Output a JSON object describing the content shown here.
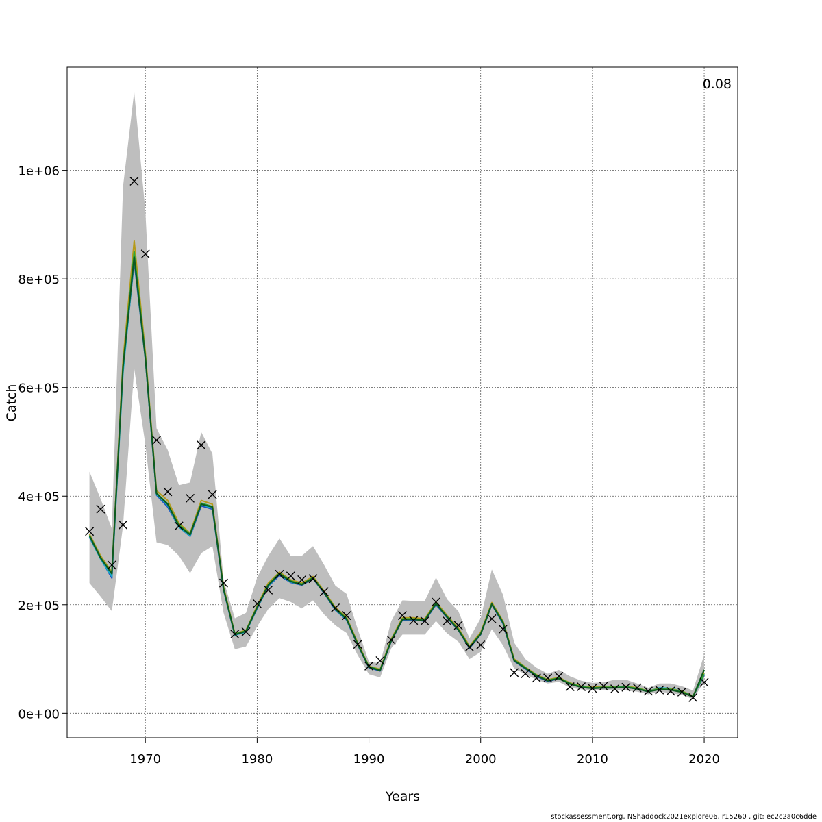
{
  "chart_data": {
    "type": "line",
    "title": "",
    "xlabel": "Years",
    "ylabel": "Catch",
    "corner_label": "0.08",
    "xlim": [
      1963,
      2023
    ],
    "ylim": [
      -45000,
      1190000
    ],
    "x_ticks": [
      1970,
      1980,
      1990,
      2000,
      2010,
      2020
    ],
    "x_tick_labels": [
      "1970",
      "1980",
      "1990",
      "2000",
      "2010",
      "2020"
    ],
    "y_ticks": [
      0,
      200000,
      400000,
      600000,
      800000,
      1000000
    ],
    "y_tick_labels": [
      "0e+00",
      "2e+05",
      "4e+05",
      "6e+05",
      "8e+05",
      "1e+06"
    ],
    "grid": true,
    "x": [
      1965,
      1966,
      1967,
      1968,
      1969,
      1970,
      1971,
      1972,
      1973,
      1974,
      1975,
      1976,
      1977,
      1978,
      1979,
      1980,
      1981,
      1982,
      1983,
      1984,
      1985,
      1986,
      1987,
      1988,
      1989,
      1990,
      1991,
      1992,
      1993,
      1994,
      1995,
      1996,
      1997,
      1998,
      1999,
      2000,
      2001,
      2002,
      2003,
      2004,
      2005,
      2006,
      2007,
      2008,
      2009,
      2010,
      2011,
      2012,
      2013,
      2014,
      2015,
      2016,
      2017,
      2018,
      2019,
      2020
    ],
    "observed": [
      335000,
      376000,
      273000,
      347000,
      980000,
      846000,
      503000,
      408000,
      345000,
      396000,
      494000,
      403000,
      240000,
      146000,
      150000,
      202000,
      227000,
      256000,
      253000,
      246000,
      248000,
      224000,
      194000,
      180000,
      127000,
      87000,
      97000,
      135000,
      180000,
      171000,
      170000,
      205000,
      170000,
      162000,
      122000,
      126000,
      174000,
      155000,
      75000,
      73000,
      65000,
      65000,
      68000,
      49000,
      49000,
      46000,
      50000,
      45000,
      48000,
      47000,
      41000,
      43000,
      41000,
      39000,
      29000,
      57000
    ],
    "ci_upper": [
      445000,
      395000,
      340000,
      970000,
      1145000,
      925000,
      525000,
      485000,
      420000,
      425000,
      518000,
      478000,
      245000,
      175000,
      185000,
      250000,
      290000,
      322000,
      290000,
      290000,
      308000,
      273000,
      235000,
      220000,
      155000,
      95000,
      92000,
      170000,
      208000,
      207000,
      207000,
      250000,
      210000,
      188000,
      138000,
      175000,
      265000,
      218000,
      130000,
      100000,
      84000,
      73000,
      80000,
      68000,
      60000,
      56000,
      57000,
      62000,
      62000,
      55000,
      47000,
      55000,
      55000,
      50000,
      42000,
      108000
    ],
    "ci_lower": [
      240000,
      215000,
      188000,
      345000,
      635000,
      495000,
      315000,
      310000,
      290000,
      258000,
      295000,
      308000,
      185000,
      118000,
      123000,
      160000,
      192000,
      212000,
      205000,
      193000,
      208000,
      182000,
      162000,
      148000,
      107000,
      72000,
      66000,
      120000,
      145000,
      145000,
      145000,
      170000,
      147000,
      132000,
      100000,
      113000,
      155000,
      125000,
      82000,
      72000,
      62000,
      55000,
      58000,
      47000,
      44000,
      42000,
      43000,
      42000,
      42000,
      40000,
      35000,
      40000,
      37000,
      34000,
      26000,
      58000
    ],
    "series": [
      {
        "color": "#1f4fbf",
        "values": [
          324000,
          285000,
          249000,
          633000,
          832000,
          653000,
          402000,
          380000,
          343000,
          326000,
          382000,
          376000,
          227000,
          144000,
          150000,
          193000,
          234000,
          254000,
          241000,
          236000,
          248000,
          221000,
          190000,
          172000,
          126000,
          84000,
          78000,
          133000,
          172000,
          172000,
          170000,
          200000,
          176000,
          153000,
          120000,
          145000,
          200000,
          165000,
          96000,
          82000,
          68000,
          59000,
          64000,
          54000,
          48000,
          46000,
          47000,
          47000,
          48000,
          45000,
          40000,
          45000,
          44000,
          39000,
          31000,
          70000
        ]
      },
      {
        "color": "#17b0c9",
        "values": [
          325000,
          284000,
          252000,
          627000,
          837000,
          653000,
          403000,
          383000,
          343000,
          327000,
          384000,
          378000,
          228000,
          144000,
          150000,
          194000,
          235000,
          256000,
          242000,
          237000,
          249000,
          222000,
          191000,
          173000,
          127000,
          85000,
          79000,
          134000,
          173000,
          173000,
          171000,
          201000,
          177000,
          154000,
          121000,
          146000,
          201000,
          166000,
          97000,
          83000,
          69000,
          60000,
          65000,
          55000,
          49000,
          47000,
          48000,
          48000,
          49000,
          46000,
          41000,
          47000,
          46000,
          41000,
          32000,
          74000
        ]
      },
      {
        "color": "#b59a1a",
        "values": [
          330000,
          290000,
          260000,
          650000,
          870000,
          665000,
          410000,
          392000,
          350000,
          332000,
          392000,
          385000,
          233000,
          147000,
          153000,
          198000,
          240000,
          260000,
          246000,
          240000,
          252000,
          225000,
          195000,
          177000,
          130000,
          87000,
          81000,
          137000,
          176000,
          176000,
          174000,
          205000,
          180000,
          157000,
          124000,
          149000,
          204000,
          170000,
          100000,
          85000,
          71000,
          62000,
          66000,
          56000,
          50000,
          48000,
          49000,
          49000,
          50000,
          47000,
          41000,
          46000,
          45000,
          41000,
          32000,
          75000
        ]
      },
      {
        "color": "#2ea83a",
        "values": [
          328000,
          287000,
          258000,
          640000,
          850000,
          658000,
          406000,
          386000,
          347000,
          330000,
          387000,
          381000,
          230000,
          146000,
          152000,
          196000,
          237000,
          258000,
          244000,
          238000,
          250000,
          223000,
          193000,
          175000,
          128000,
          86000,
          80000,
          135000,
          174000,
          174000,
          172000,
          203000,
          178000,
          155000,
          122000,
          147000,
          202000,
          168000,
          98000,
          84000,
          70000,
          61000,
          65000,
          55000,
          49000,
          47000,
          48000,
          48000,
          49000,
          46000,
          41000,
          45000,
          44000,
          40000,
          31000,
          72000
        ]
      },
      {
        "color": "#0e5a1f",
        "values": [
          327000,
          286000,
          257000,
          638000,
          840000,
          655000,
          405000,
          385000,
          345000,
          329000,
          385000,
          380000,
          229000,
          145000,
          151000,
          195000,
          236000,
          257000,
          243000,
          237000,
          249000,
          222000,
          192000,
          174000,
          127000,
          85000,
          79000,
          134000,
          173000,
          173000,
          171000,
          202000,
          177000,
          154000,
          121000,
          146000,
          201000,
          167000,
          97000,
          83000,
          69000,
          60000,
          64000,
          54000,
          48000,
          46000,
          47000,
          47000,
          48000,
          45000,
          40000,
          44000,
          43000,
          39000,
          30000,
          80000
        ]
      }
    ]
  },
  "footer": "stockassessment.org, NShaddock2021explore06, r15260 , git: ec2c2a0c6dde"
}
